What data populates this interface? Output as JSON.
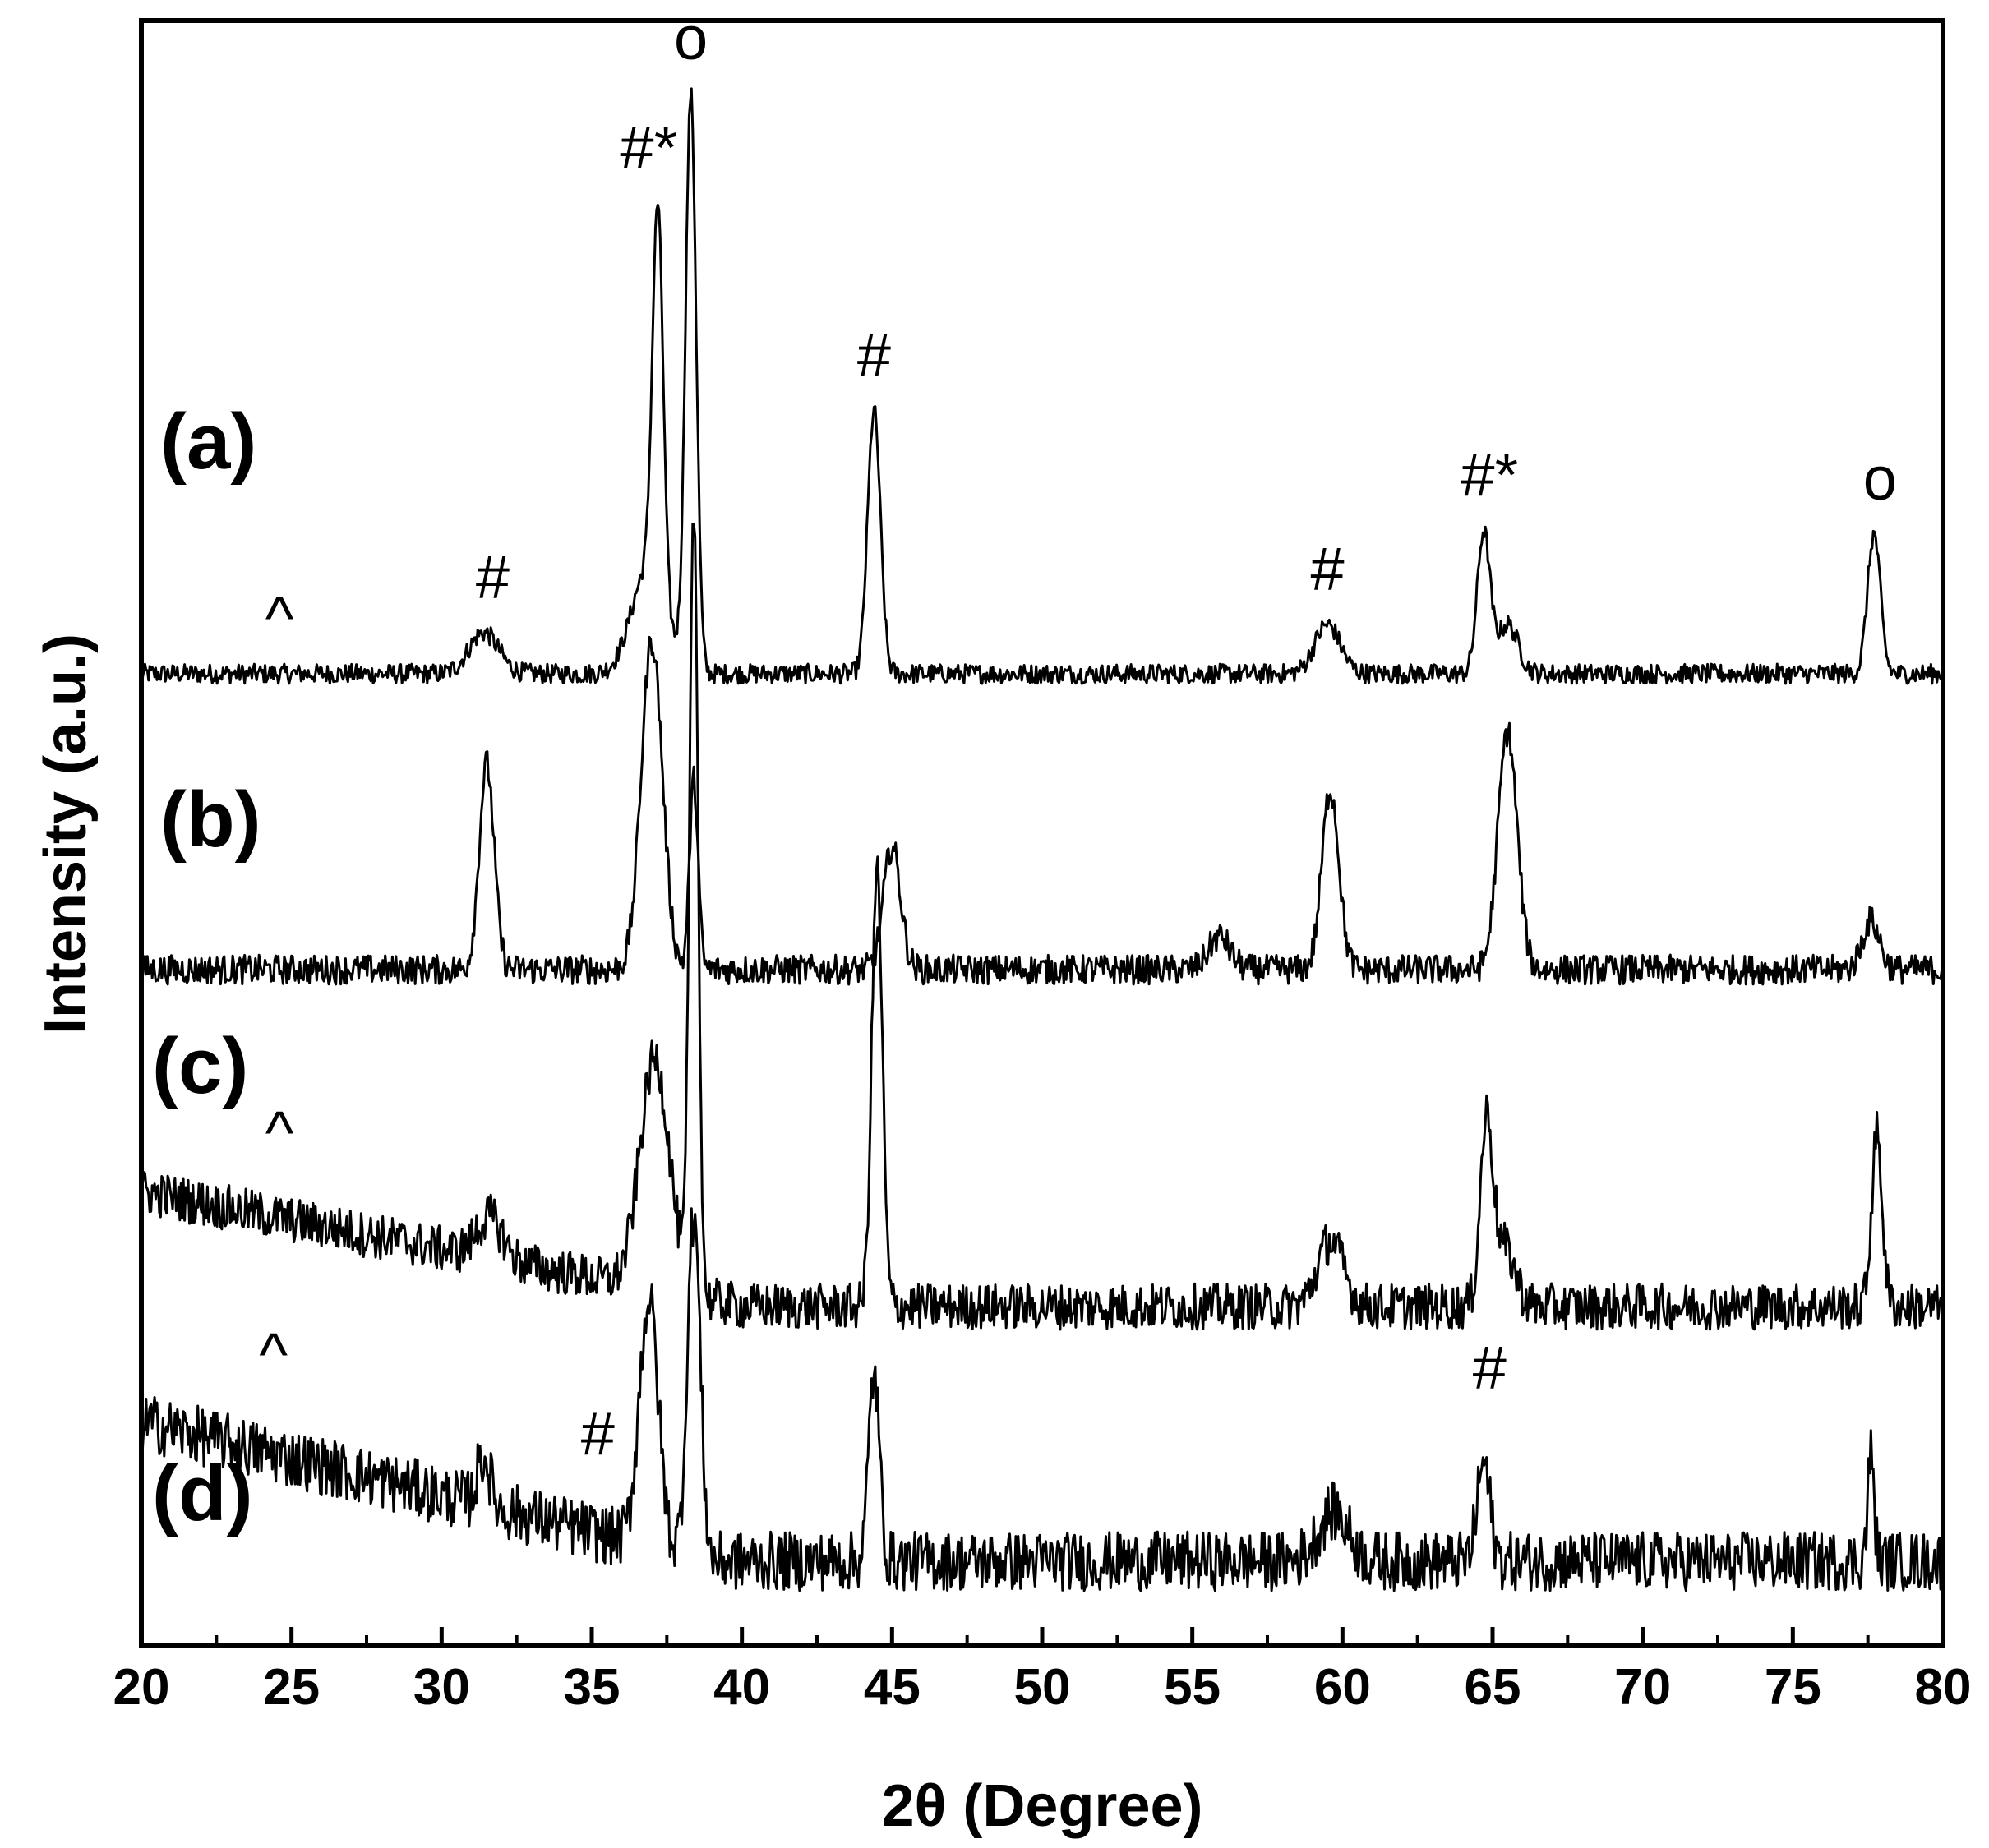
{
  "chart_data": {
    "type": "line",
    "xlabel": "2θ (Degree)",
    "ylabel": "Intensity (a.u.)",
    "xlim": [
      20,
      80
    ],
    "x_ticks": [
      20,
      25,
      30,
      35,
      40,
      45,
      50,
      55,
      60,
      65,
      70,
      75,
      80
    ],
    "x_tick_labels": [
      "20",
      "25",
      "30",
      "35",
      "40",
      "45",
      "50",
      "55",
      "60",
      "65",
      "70",
      "75",
      "80"
    ],
    "y_ticks_labeled": false,
    "grid": false,
    "legend": "none",
    "series": [
      {
        "label": "(a)",
        "baseline": 0.22,
        "noise": 0.012,
        "peaks": [
          [
            31.4,
            0.05,
            0.7
          ],
          [
            36.9,
            0.13,
            0.8
          ],
          [
            37.2,
            0.46,
            0.25
          ],
          [
            38.3,
            0.7,
            0.25
          ],
          [
            44.4,
            0.32,
            0.3
          ],
          [
            59.5,
            0.06,
            0.6
          ],
          [
            64.7,
            0.17,
            0.3
          ],
          [
            65.5,
            0.06,
            0.5
          ],
          [
            77.7,
            0.17,
            0.3
          ]
        ]
      },
      {
        "label": "(b)",
        "baseline": 0.2,
        "noise": 0.018,
        "peaks": [
          [
            31.5,
            0.25,
            0.35
          ],
          [
            37.0,
            0.4,
            0.5
          ],
          [
            38.4,
            0.23,
            0.2
          ],
          [
            45.0,
            0.15,
            0.4
          ],
          [
            55.9,
            0.04,
            0.5
          ],
          [
            59.6,
            0.22,
            0.4
          ],
          [
            65.5,
            0.29,
            0.45
          ],
          [
            77.6,
            0.06,
            0.4
          ]
        ]
      },
      {
        "label": "(c)",
        "baseline": 0.2,
        "noise": 0.028,
        "slope": [
          0.14,
          0.0,
          40.0
        ],
        "peaks": [
          [
            31.6,
            0.05,
            0.6
          ],
          [
            37.1,
            0.28,
            0.7
          ],
          [
            38.4,
            0.95,
            0.2
          ],
          [
            44.5,
            0.53,
            0.25
          ],
          [
            59.6,
            0.08,
            0.6
          ],
          [
            64.8,
            0.22,
            0.3
          ],
          [
            65.4,
            0.07,
            0.5
          ],
          [
            77.8,
            0.21,
            0.25
          ]
        ]
      },
      {
        "label": "(d)",
        "baseline": 0.16,
        "noise": 0.036,
        "slope": [
          0.17,
          0.0,
          39.0
        ],
        "peaks": [
          [
            31.4,
            0.06,
            0.3
          ],
          [
            36.9,
            0.3,
            0.45
          ],
          [
            38.4,
            0.42,
            0.3
          ],
          [
            44.4,
            0.23,
            0.25
          ],
          [
            59.7,
            0.06,
            0.7
          ],
          [
            64.7,
            0.12,
            0.3
          ],
          [
            77.6,
            0.13,
            0.15
          ]
        ]
      }
    ],
    "annotations": [
      {
        "text": "^",
        "x": 24.6,
        "trace": "(a)"
      },
      {
        "text": "#",
        "x": 31.7,
        "trace": "(a)"
      },
      {
        "text": "#*",
        "x": 36.9,
        "trace": "(a)"
      },
      {
        "text": "o",
        "x": 38.3,
        "trace": "(a)"
      },
      {
        "text": "#",
        "x": 44.4,
        "trace": "(a)"
      },
      {
        "text": "#",
        "x": 59.5,
        "trace": "(a)"
      },
      {
        "text": "#*",
        "x": 64.9,
        "trace": "(a)"
      },
      {
        "text": "o",
        "x": 77.9,
        "trace": "(a)"
      },
      {
        "text": "^",
        "x": 24.6,
        "trace": "(c)"
      },
      {
        "text": "^",
        "x": 24.4,
        "trace": "(d)"
      },
      {
        "text": "#",
        "x": 35.2,
        "trace": "(d)"
      },
      {
        "text": "#",
        "x": 64.9,
        "trace": "(d)"
      }
    ]
  }
}
